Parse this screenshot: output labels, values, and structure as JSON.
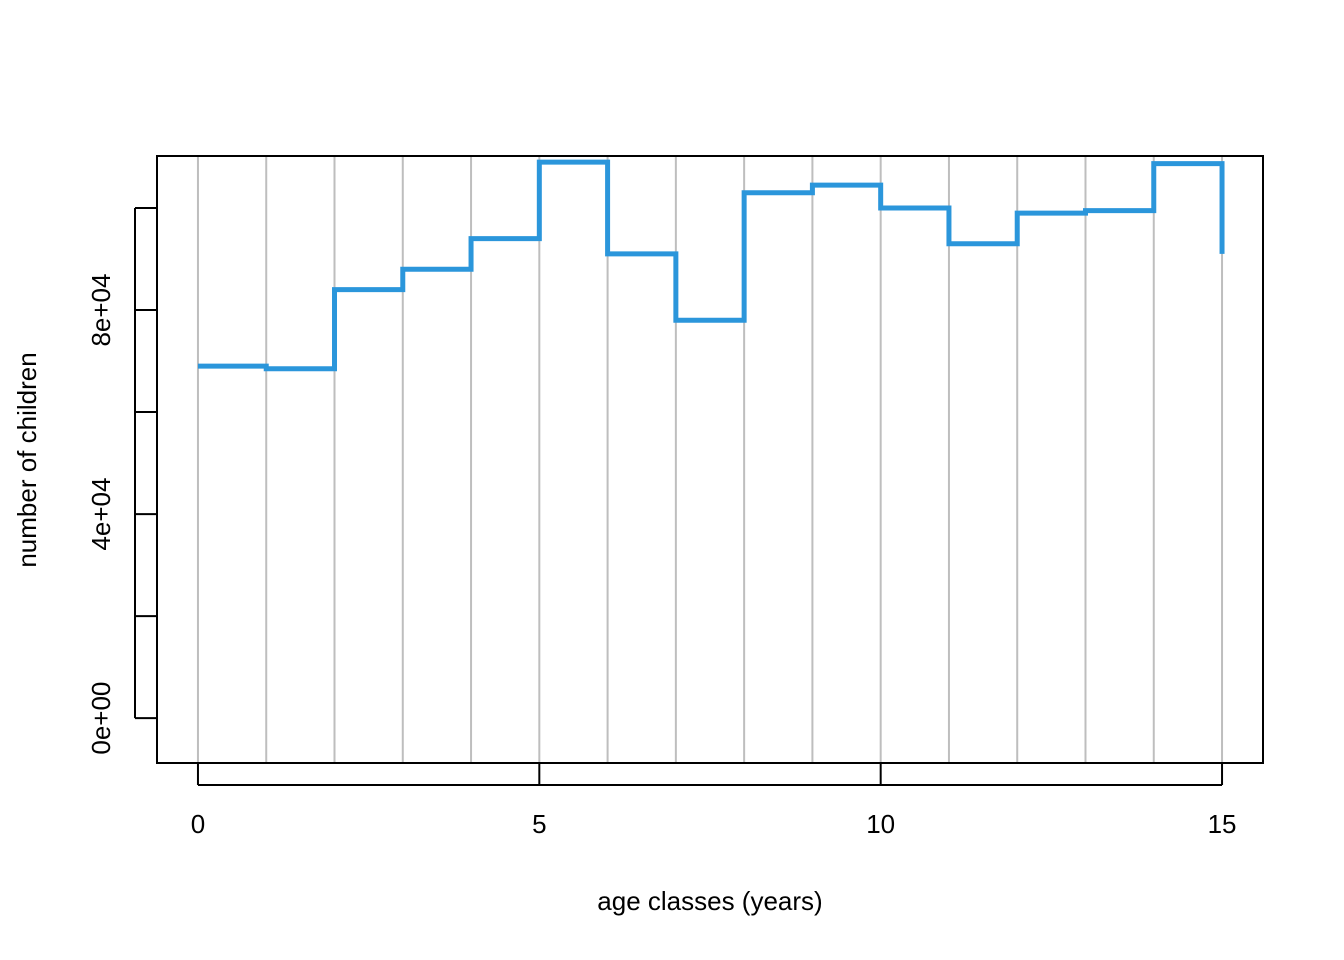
{
  "chart_data": {
    "type": "line",
    "subtype": "step",
    "title": "",
    "xlabel": "age classes (years)",
    "ylabel": "number of children",
    "xlim": [
      -0.6,
      15.6
    ],
    "ylim": [
      -8800,
      110200
    ],
    "x_ticks": [
      0,
      5,
      10,
      15
    ],
    "x_tick_labels": [
      "0",
      "5",
      "10",
      "15"
    ],
    "y_ticks": [
      0,
      20000,
      40000,
      60000,
      80000,
      100000
    ],
    "y_tick_labels": [
      "0e+00",
      "",
      "4e+04",
      "",
      "8e+04",
      ""
    ],
    "grid": "vertical lines at every integer age 0–15",
    "line_color": "#2b96db",
    "grid_color": "#bebebe",
    "series": [
      {
        "x": [
          0,
          1,
          2,
          3,
          4,
          5,
          6,
          7,
          8,
          9,
          10,
          11,
          12,
          13,
          14,
          15
        ],
        "values": [
          69000,
          68500,
          84000,
          88000,
          94000,
          109000,
          91000,
          78000,
          103000,
          104500,
          100000,
          93000,
          99000,
          99500,
          108700,
          91000
        ]
      }
    ]
  }
}
